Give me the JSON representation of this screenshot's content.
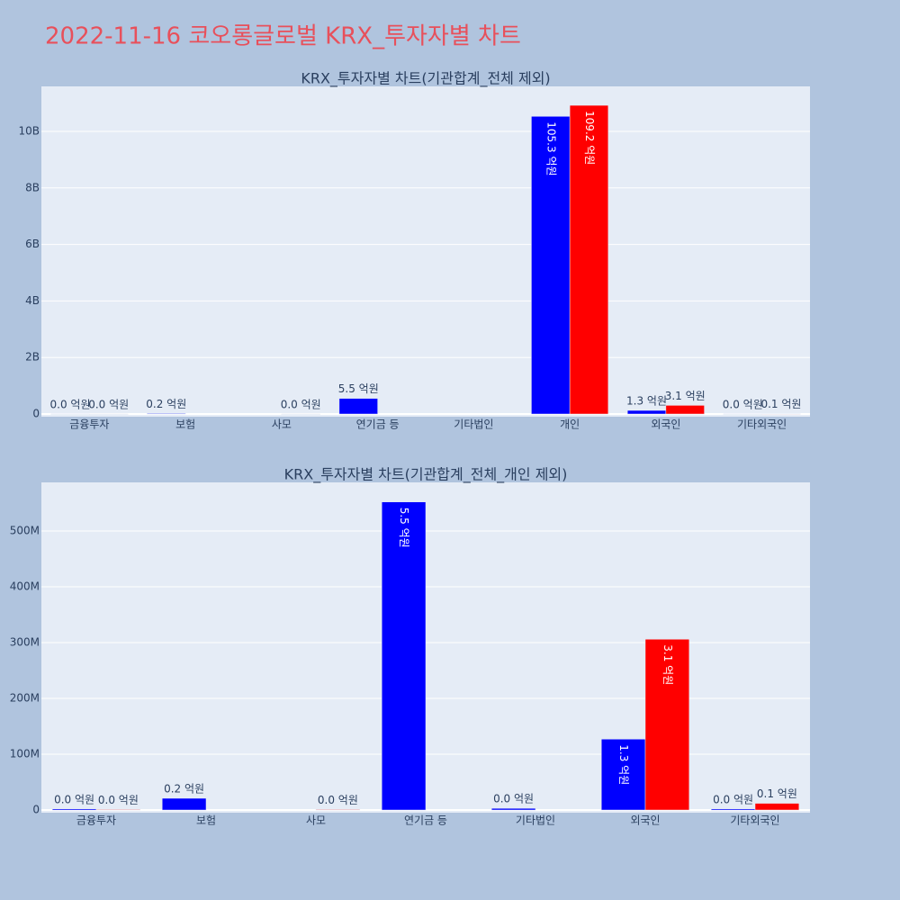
{
  "title": "2022-11-16 코오롱글로벌 KRX_투자자별 차트",
  "chart_data": [
    {
      "type": "bar",
      "title": "KRX_투자자별 차트(기관합계_전체 제외)",
      "categories": [
        "금융투자",
        "보험",
        "사모",
        "연기금 등",
        "기타법인",
        "개인",
        "외국인",
        "기타외국인"
      ],
      "series": [
        {
          "color": "#0000ff",
          "values": [
            2000000,
            21000000,
            null,
            552000000,
            null,
            10530000000,
            127000000,
            2000000
          ],
          "value_labels": [
            "0.0 억원",
            "0.2 억원",
            null,
            "5.5 억원",
            null,
            "105.3 억원",
            "1.3 억원",
            "0.0 억원"
          ]
        },
        {
          "color": "#ff0000",
          "values": [
            1000000,
            null,
            1000000,
            null,
            null,
            10920000000,
            306000000,
            12000000
          ],
          "value_labels": [
            "0.0 억원",
            null,
            "0.0 억원",
            null,
            null,
            "109.2 억원",
            "3.1 억원",
            "0.1 억원"
          ]
        }
      ],
      "ylim": [
        -95000000,
        11590000000
      ],
      "yticks": [
        0,
        {
          "value": 2000000000,
          "label": "2B"
        },
        {
          "value": 4000000000,
          "label": "4B"
        },
        {
          "value": 6000000000,
          "label": "6B"
        },
        {
          "value": 8000000000,
          "label": "8B"
        },
        {
          "value": 10000000000,
          "label": "10B"
        }
      ],
      "grid": true
    },
    {
      "type": "bar",
      "title": "KRX_투자자별 차트(기관합계_전체_개인 제외)",
      "categories": [
        "금융투자",
        "보험",
        "사모",
        "연기금 등",
        "기타법인",
        "외국인",
        "기타외국인"
      ],
      "series": [
        {
          "color": "#0000ff",
          "values": [
            2000000,
            21000000,
            null,
            552000000,
            3000000,
            127000000,
            2000000
          ],
          "value_labels": [
            "0.0 억원",
            "0.2 억원",
            null,
            "5.5 억원",
            "0.0 억원",
            "1.3 억원",
            "0.0 억원"
          ]
        },
        {
          "color": "#ff0000",
          "values": [
            1000000,
            null,
            1000000,
            null,
            null,
            306000000,
            12000000
          ],
          "value_labels": [
            "0.0 억원",
            null,
            "0.0 억원",
            null,
            null,
            "3.1 억원",
            "0.1 억원"
          ]
        }
      ],
      "ylim": [
        -4800000,
        587000000
      ],
      "yticks": [
        0,
        {
          "value": 100000000,
          "label": "100M"
        },
        {
          "value": 200000000,
          "label": "200M"
        },
        {
          "value": 300000000,
          "label": "300M"
        },
        {
          "value": 400000000,
          "label": "400M"
        },
        {
          "value": 500000000,
          "label": "500M"
        }
      ],
      "grid": true
    }
  ]
}
